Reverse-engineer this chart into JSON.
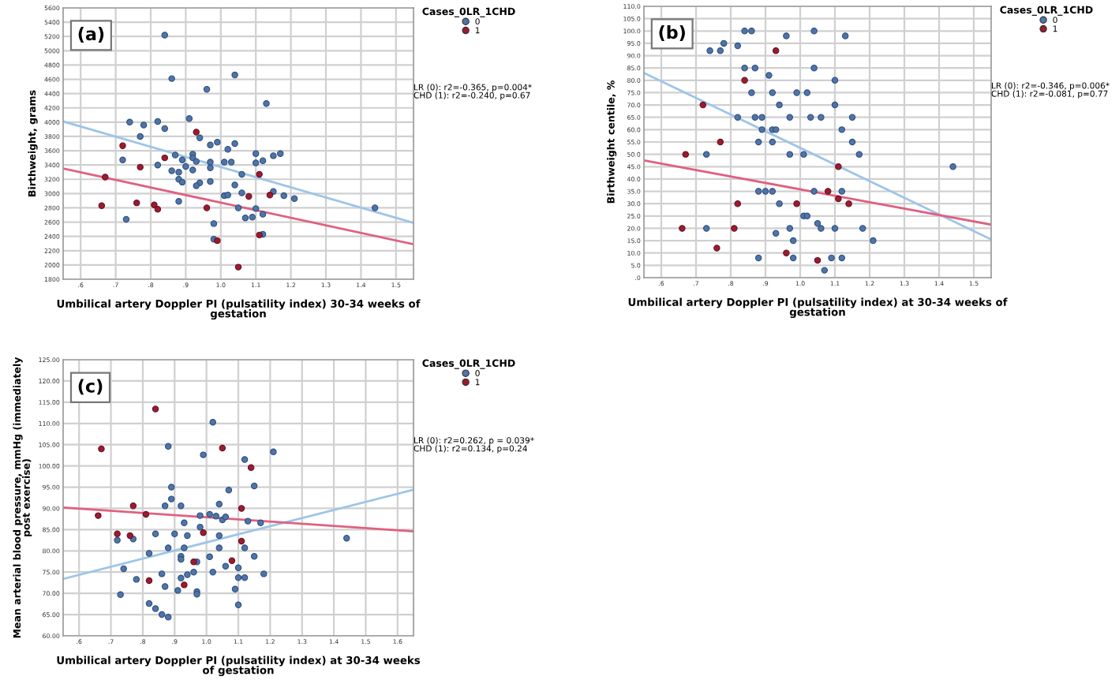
{
  "chart_data": [
    {
      "type": "scatter",
      "xlabel": "Umbilical artery Doppler PI (pulsatility index) 30-34 weeks of\ngestation",
      "ylabel": "Birthweight, grams",
      "legend_title": "Cases_0LR_1CHD",
      "legend": "top right",
      "grid": true,
      "marker": "circle",
      "annotations": [
        "(a)",
        "LR (0): r2=-0.365, p=0.004*\nCHD (1): r2=-0.240, p=0.67"
      ],
      "xlim": [
        0.55,
        1.55
      ],
      "xticks": [
        {
          "value": 0.6,
          "label": ".6"
        },
        {
          "value": 0.7,
          "label": ".7"
        },
        {
          "value": 0.8,
          "label": ".8"
        },
        {
          "value": 0.9,
          "label": ".9"
        },
        {
          "value": 1.0,
          "label": "1.0"
        },
        {
          "value": 1.1,
          "label": "1.1"
        },
        {
          "value": 1.2,
          "label": "1.2"
        },
        {
          "value": 1.3,
          "label": "1.3"
        },
        {
          "value": 1.4,
          "label": "1.4"
        },
        {
          "value": 1.5,
          "label": "1.5"
        }
      ],
      "ylim": [
        1800,
        5600
      ],
      "yticks": [
        1800,
        2000,
        2200,
        2400,
        2600,
        2800,
        3000,
        3200,
        3400,
        3600,
        3800,
        4000,
        4200,
        4400,
        4600,
        4800,
        5000,
        5200,
        5400,
        5600
      ],
      "series": [
        {
          "name": "0",
          "color": "#4f74a8",
          "x": [
            0.84,
            0.86,
            0.96,
            1.04,
            1.13,
            0.91,
            0.74,
            0.78,
            0.82,
            0.84,
            0.77,
            0.94,
            0.97,
            0.99,
            1.04,
            1.02,
            0.72,
            0.82,
            0.87,
            0.89,
            0.9,
            0.92,
            0.92,
            0.93,
            0.92,
            0.86,
            0.88,
            0.88,
            0.89,
            0.94,
            0.93,
            0.97,
            0.97,
            0.97,
            1.01,
            1.03,
            1.06,
            1.04,
            1.1,
            1.1,
            1.12,
            1.15,
            1.17,
            1.01,
            1.02,
            1.06,
            1.15,
            1.18,
            1.21,
            0.88,
            1.05,
            1.1,
            1.12,
            1.07,
            1.09,
            0.73,
            0.98,
            0.98,
            1.12,
            1.44
          ],
          "values": [
            5220,
            4610,
            4460,
            4660,
            4260,
            4050,
            4000,
            3960,
            4010,
            3910,
            3800,
            3780,
            3680,
            3720,
            3700,
            3620,
            3470,
            3400,
            3540,
            3470,
            3380,
            3550,
            3500,
            3450,
            3330,
            3320,
            3300,
            3200,
            3160,
            3150,
            3110,
            3170,
            3360,
            3440,
            3440,
            3440,
            3270,
            3120,
            3560,
            3430,
            3460,
            3530,
            3560,
            2970,
            2980,
            3010,
            3030,
            2970,
            2930,
            2890,
            2800,
            2790,
            2710,
            2660,
            2670,
            2640,
            2580,
            2360,
            2430,
            2800
          ]
        },
        {
          "name": "1",
          "color": "#9b1b30",
          "x": [
            0.72,
            0.67,
            0.77,
            0.84,
            0.93,
            1.11,
            0.66,
            0.76,
            0.81,
            0.82,
            0.96,
            1.08,
            1.14,
            0.99,
            1.11,
            1.05
          ],
          "values": [
            3670,
            3230,
            3370,
            3500,
            3860,
            3270,
            2830,
            2870,
            2840,
            2780,
            2800,
            2960,
            2980,
            2340,
            2420,
            1970
          ]
        },
        {
          "type": "line",
          "marker": "none",
          "color": "#9ec5e8",
          "x": [
            0.55,
            1.55
          ],
          "values": [
            4010,
            2590
          ]
        },
        {
          "type": "line",
          "marker": "none",
          "color": "#e06080",
          "x": [
            0.55,
            1.55
          ],
          "values": [
            3350,
            2290
          ]
        }
      ]
    },
    {
      "type": "scatter",
      "xlabel": "Umbilical artery Doppler PI (pulsatility index) at 30-34 weeks of\ngestation",
      "ylabel": "Birthweight centile, %",
      "legend_title": "Cases_0LR_1CHD",
      "legend": "top right",
      "grid": true,
      "marker": "circle",
      "annotations": [
        "(b)",
        "LR (0): r2=-0.346, p=0.006*\nCHD (1): r2=-0.081, p=0.77"
      ],
      "xlim": [
        0.55,
        1.55
      ],
      "xticks": [
        {
          "value": 0.6,
          "label": ".6"
        },
        {
          "value": 0.7,
          "label": ".7"
        },
        {
          "value": 0.8,
          "label": ".8"
        },
        {
          "value": 0.9,
          "label": ".9"
        },
        {
          "value": 1.0,
          "label": "1.0"
        },
        {
          "value": 1.1,
          "label": "1.1"
        },
        {
          "value": 1.2,
          "label": "1.2"
        },
        {
          "value": 1.3,
          "label": "1.3"
        },
        {
          "value": 1.4,
          "label": "1.4"
        },
        {
          "value": 1.5,
          "label": "1.5"
        }
      ],
      "ylim": [
        0,
        110
      ],
      "yticks": [
        {
          "value": 0,
          "label": ".0"
        },
        {
          "value": 5,
          "label": "5.0"
        },
        {
          "value": 10,
          "label": "10.0"
        },
        {
          "value": 15,
          "label": "15.0"
        },
        {
          "value": 20,
          "label": "20.0"
        },
        {
          "value": 25,
          "label": "25.0"
        },
        {
          "value": 30,
          "label": "30.0"
        },
        {
          "value": 35,
          "label": "35.0"
        },
        {
          "value": 40,
          "label": "40.0"
        },
        {
          "value": 45,
          "label": "45.0"
        },
        {
          "value": 50,
          "label": "50.0"
        },
        {
          "value": 55,
          "label": "55.0"
        },
        {
          "value": 60,
          "label": "60.0"
        },
        {
          "value": 65,
          "label": "65.0"
        },
        {
          "value": 70,
          "label": "70.0"
        },
        {
          "value": 75,
          "label": "75.0"
        },
        {
          "value": 80,
          "label": "80.0"
        },
        {
          "value": 85,
          "label": "85.0"
        },
        {
          "value": 90,
          "label": "90.0"
        },
        {
          "value": 95,
          "label": "95.0"
        },
        {
          "value": 100,
          "label": "100.0"
        },
        {
          "value": 105,
          "label": "105.0"
        },
        {
          "value": 110,
          "label": "110.0"
        }
      ],
      "series": [
        {
          "name": "0",
          "color": "#4f74a8",
          "x": [
            0.74,
            0.77,
            0.78,
            0.82,
            0.84,
            0.86,
            0.96,
            1.04,
            1.13,
            0.84,
            0.87,
            1.04,
            0.91,
            1.1,
            0.86,
            0.92,
            0.99,
            1.02,
            0.94,
            1.1,
            0.82,
            0.87,
            0.89,
            0.97,
            1.03,
            1.06,
            1.15,
            0.89,
            0.92,
            0.93,
            1.12,
            0.88,
            0.92,
            1.15,
            0.73,
            0.97,
            1.01,
            1.17,
            1.44,
            0.88,
            0.9,
            0.92,
            1.04,
            1.12,
            0.94,
            1.01,
            1.02,
            1.05,
            0.73,
            0.97,
            1.06,
            1.1,
            1.18,
            0.93,
            0.98,
            1.21,
            0.88,
            0.98,
            1.09,
            1.12,
            1.07
          ],
          "values": [
            92,
            92,
            95,
            94,
            100,
            100,
            98,
            100,
            98,
            85,
            85,
            85,
            82,
            80,
            75,
            75,
            75,
            75,
            70,
            70,
            65,
            65,
            65,
            65,
            65,
            65,
            65,
            60,
            60,
            60,
            60,
            55,
            55,
            55,
            50,
            50,
            50,
            50,
            45,
            35,
            35,
            35,
            35,
            35,
            30,
            25,
            25,
            22,
            20,
            20,
            20,
            20,
            20,
            18,
            15,
            15,
            8,
            8,
            8,
            8,
            3
          ]
        },
        {
          "name": "1",
          "color": "#9b1b30",
          "x": [
            0.93,
            0.84,
            0.72,
            0.77,
            0.67,
            1.11,
            1.08,
            1.11,
            0.82,
            0.99,
            1.14,
            0.66,
            0.81,
            0.76,
            0.96,
            1.05
          ],
          "values": [
            92,
            80,
            70,
            55,
            50,
            45,
            35,
            32,
            30,
            30,
            30,
            20,
            20,
            12,
            10,
            7
          ]
        },
        {
          "type": "line",
          "marker": "none",
          "color": "#9ec5e8",
          "x": [
            0.55,
            1.55
          ],
          "values": [
            83,
            15.5
          ]
        },
        {
          "type": "line",
          "marker": "none",
          "color": "#e06080",
          "x": [
            0.55,
            1.55
          ],
          "values": [
            47.5,
            21.5
          ]
        }
      ]
    },
    {
      "type": "scatter",
      "xlabel": "Umbilical artery Doppler PI (pulsatility index) at 30-34 weeks\nof gestation",
      "ylabel": "Mean arterial blood pressure, mmHg (immediately\npost exercise)",
      "legend_title": "Cases_0LR_1CHD",
      "legend": "top right",
      "grid": true,
      "marker": "circle",
      "annotations": [
        "(c)",
        "LR (0): r2=0.262, p = 0.039*\nCHD (1): r2=0.134, p=0.24"
      ],
      "xlim": [
        0.55,
        1.65
      ],
      "xticks": [
        {
          "value": 0.6,
          "label": ".6"
        },
        {
          "value": 0.7,
          "label": ".7"
        },
        {
          "value": 0.8,
          "label": ".8"
        },
        {
          "value": 0.9,
          "label": ".9"
        },
        {
          "value": 1.0,
          "label": "1.0"
        },
        {
          "value": 1.1,
          "label": "1.1"
        },
        {
          "value": 1.2,
          "label": "1.2"
        },
        {
          "value": 1.3,
          "label": "1.3"
        },
        {
          "value": 1.4,
          "label": "1.4"
        },
        {
          "value": 1.5,
          "label": "1.5"
        },
        {
          "value": 1.6,
          "label": "1.6"
        }
      ],
      "ylim": [
        60,
        125
      ],
      "yticks": [
        {
          "value": 60,
          "label": "60.00"
        },
        {
          "value": 65,
          "label": "65.00"
        },
        {
          "value": 70,
          "label": "70.00"
        },
        {
          "value": 75,
          "label": "75.00"
        },
        {
          "value": 80,
          "label": "80.00"
        },
        {
          "value": 85,
          "label": "85.00"
        },
        {
          "value": 90,
          "label": "90.00"
        },
        {
          "value": 95,
          "label": "95.00"
        },
        {
          "value": 100,
          "label": "100.00"
        },
        {
          "value": 105,
          "label": "105.00"
        },
        {
          "value": 110,
          "label": "110.00"
        },
        {
          "value": 115,
          "label": "115.00"
        },
        {
          "value": 120,
          "label": "120.00"
        },
        {
          "value": 125,
          "label": "125.00"
        }
      ],
      "series": [
        {
          "name": "0",
          "color": "#4f74a8",
          "x": [
            0.72,
            0.73,
            0.74,
            0.77,
            0.78,
            0.82,
            0.82,
            0.84,
            0.84,
            0.86,
            0.86,
            0.87,
            0.87,
            0.88,
            0.88,
            0.88,
            0.89,
            0.89,
            0.9,
            0.91,
            0.92,
            0.92,
            0.92,
            0.92,
            0.93,
            0.93,
            0.94,
            0.94,
            0.96,
            0.97,
            0.97,
            0.97,
            0.98,
            0.98,
            0.99,
            1.01,
            1.01,
            1.02,
            1.02,
            1.03,
            1.04,
            1.04,
            1.04,
            1.05,
            1.06,
            1.06,
            1.07,
            1.09,
            1.1,
            1.1,
            1.1,
            1.12,
            1.12,
            1.12,
            1.13,
            1.15,
            1.15,
            1.17,
            1.18,
            1.21,
            1.44
          ],
          "values": [
            82.5,
            69.7,
            75.8,
            82.8,
            73.3,
            79.4,
            67.6,
            66.4,
            84,
            65,
            74.6,
            71.6,
            90.6,
            64.4,
            80.7,
            104.6,
            92.2,
            95,
            84,
            70.7,
            90.6,
            78.7,
            78,
            73.6,
            80.7,
            86.6,
            83.6,
            74.4,
            75,
            77.4,
            70.4,
            69.8,
            85.6,
            88.3,
            102.6,
            88.6,
            78.6,
            110.3,
            75,
            88.2,
            91,
            83.6,
            80.7,
            87.3,
            76.4,
            88,
            94.3,
            71,
            76,
            73.7,
            67.3,
            101.5,
            80.7,
            73.7,
            87,
            95.3,
            78.7,
            86.6,
            74.6,
            103.3,
            83
          ]
        },
        {
          "name": "1",
          "color": "#9b1b30",
          "x": [
            0.67,
            0.66,
            0.72,
            0.76,
            0.77,
            0.81,
            0.82,
            0.84,
            0.93,
            0.96,
            0.99,
            1.05,
            1.08,
            1.11,
            1.11,
            1.14
          ],
          "values": [
            104,
            88.3,
            84,
            83.6,
            90.6,
            88.6,
            73,
            113.4,
            72,
            77.4,
            84.3,
            104.2,
            77.7,
            90,
            82.3,
            99.6
          ]
        },
        {
          "type": "line",
          "marker": "none",
          "color": "#9ec5e8",
          "x": [
            0.55,
            1.65
          ],
          "values": [
            73.4,
            94.4
          ]
        },
        {
          "type": "line",
          "marker": "none",
          "color": "#e06080",
          "x": [
            0.55,
            1.65
          ],
          "values": [
            90.2,
            84.6
          ]
        }
      ]
    }
  ]
}
